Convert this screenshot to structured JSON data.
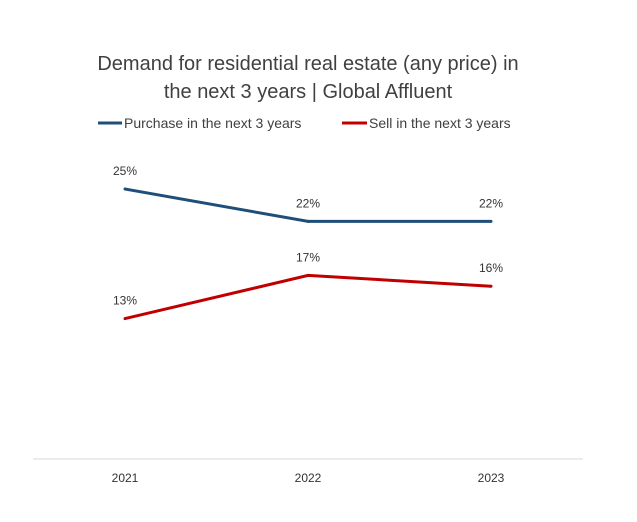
{
  "chart_data": {
    "type": "line",
    "title": "Demand for residential real estate (any price) in the next 3 years | Global Affluent",
    "title_lines": [
      "Demand for residential real estate (any price) in",
      "the next 3 years | Global Affluent"
    ],
    "categories": [
      "2021",
      "2022",
      "2023"
    ],
    "series": [
      {
        "name": "Purchase in the next 3 years",
        "color": "#1f4e79",
        "values": [
          25,
          22,
          22
        ],
        "labels": [
          "25%",
          "22%",
          "22%"
        ]
      },
      {
        "name": "Sell in the next 3 years",
        "color": "#c00000",
        "values": [
          13,
          17,
          16
        ],
        "labels": [
          "13%",
          "17%",
          "16%"
        ]
      }
    ],
    "ylim": [
      0,
      30
    ],
    "grid": false,
    "legend_position": "top"
  }
}
